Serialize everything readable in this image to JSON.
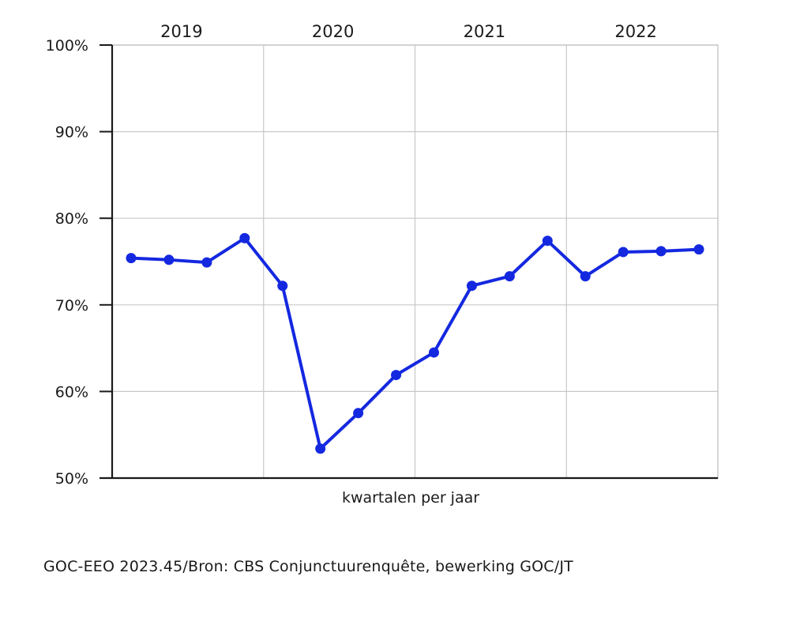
{
  "chart_data": {
    "type": "line",
    "xlabel": "kwartalen per jaar",
    "ylabel": "",
    "ylim": [
      0.5,
      1.0
    ],
    "y_ticks": [
      "50%",
      "60%",
      "70%",
      "80%",
      "90%",
      "100%"
    ],
    "grid": true,
    "years": [
      "2019",
      "2020",
      "2021",
      "2022"
    ],
    "x": [
      "2019 Q1",
      "2019 Q2",
      "2019 Q3",
      "2019 Q4",
      "2020 Q1",
      "2020 Q2",
      "2020 Q3",
      "2020 Q4",
      "2021 Q1",
      "2021 Q2",
      "2021 Q3",
      "2021 Q4",
      "2022 Q1",
      "2022 Q2",
      "2022 Q3",
      "2022 Q4"
    ],
    "series": [
      {
        "values": [
          0.754,
          0.752,
          0.749,
          0.777,
          0.722,
          0.534,
          0.575,
          0.619,
          0.645,
          0.722,
          0.733,
          0.774,
          0.733,
          0.761,
          0.762,
          0.764
        ],
        "color": "#1428e0"
      }
    ]
  },
  "source": "GOC-EEO 2023.45/Bron: CBS Conjunctuurenquête, bewerking GOC/JT"
}
